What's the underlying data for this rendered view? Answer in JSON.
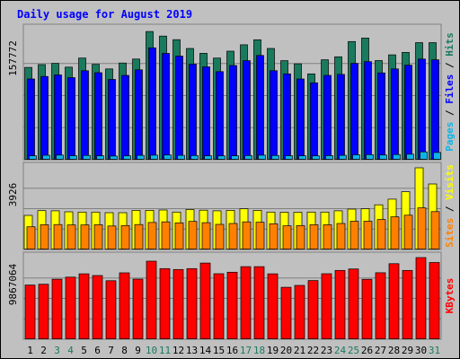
{
  "chart_data": {
    "type": "bar",
    "title": "Daily usage for August 2019",
    "categories": [
      "1",
      "2",
      "3",
      "4",
      "5",
      "6",
      "7",
      "8",
      "9",
      "10",
      "11",
      "12",
      "13",
      "14",
      "15",
      "16",
      "17",
      "18",
      "19",
      "20",
      "21",
      "22",
      "23",
      "24",
      "25",
      "26",
      "27",
      "28",
      "29",
      "30",
      "31"
    ],
    "weekend_days": [
      "3",
      "4",
      "10",
      "11",
      "17",
      "18",
      "24",
      "25",
      "31"
    ],
    "panels": [
      {
        "id": "hits",
        "ylabel": "157772",
        "ymax": 157772,
        "axis_labels": [
          "Pages",
          "Files",
          "Hits"
        ],
        "series": [
          {
            "name": "Hits",
            "color": "#1a7a5e",
            "values": [
              113500,
              117000,
              118500,
              113900,
              125000,
              117300,
              111600,
              118900,
              123800,
              157700,
              152000,
              147600,
              136800,
              130800,
              125000,
              133500,
              141300,
              147500,
              136800,
              121800,
              117900,
              105600,
              122900,
              126500,
              145300,
              149600,
              121900,
              129000,
              131900,
              144000,
              144000
            ]
          },
          {
            "name": "Files",
            "color": "#0000ff",
            "values": [
              99300,
              102400,
              104300,
              101000,
              109500,
              107000,
              98700,
              103700,
              110500,
              137600,
              130700,
              127400,
              117500,
              114200,
              108300,
              115900,
              121800,
              128200,
              109500,
              105600,
              99300,
              94600,
              103700,
              104900,
              118500,
              120600,
              106800,
              111600,
              116300,
              123800,
              122900
            ]
          },
          {
            "name": "Pages",
            "color": "#0fb4e6",
            "values": [
              4800,
              5500,
              5700,
              5000,
              5300,
              4900,
              4500,
              4900,
              5400,
              5600,
              5800,
              5400,
              5200,
              4900,
              4700,
              4900,
              5200,
              5600,
              5200,
              5000,
              4800,
              4700,
              5100,
              5400,
              6100,
              6300,
              5800,
              6400,
              6800,
              9700,
              8900
            ]
          }
        ]
      },
      {
        "id": "visits",
        "ylabel": "3926",
        "ymax": 3926,
        "axis_labels": [
          "Sites",
          "Visits"
        ],
        "series": [
          {
            "name": "Visits",
            "color": "#ffff00",
            "values": [
              1640,
              1870,
              1860,
              1810,
              1800,
              1800,
              1770,
              1770,
              1880,
              1880,
              1900,
              1800,
              1920,
              1890,
              1860,
              1880,
              1960,
              1880,
              1800,
              1790,
              1790,
              1800,
              1800,
              1860,
              1940,
              1960,
              2150,
              2420,
              2780,
              3926,
              3150
            ]
          },
          {
            "name": "Sites",
            "color": "#ff8000",
            "values": [
              1090,
              1190,
              1200,
              1180,
              1180,
              1190,
              1130,
              1150,
              1200,
              1300,
              1330,
              1280,
              1350,
              1290,
              1210,
              1250,
              1330,
              1310,
              1240,
              1140,
              1150,
              1190,
              1190,
              1250,
              1360,
              1360,
              1440,
              1570,
              1650,
              2000,
              1820
            ]
          }
        ]
      },
      {
        "id": "kbytes",
        "ylabel": "9867064",
        "ymax": 9867064,
        "axis_labels": [
          "KBytes"
        ],
        "series": [
          {
            "name": "KBytes",
            "color": "#ff0000",
            "values": [
              6550000,
              6650000,
              7250000,
              7500000,
              7900000,
              7700000,
              7070000,
              8020000,
              7260000,
              9430000,
              8530000,
              8420000,
              8530000,
              9210000,
              7920000,
              8100000,
              8770000,
              8770000,
              7900000,
              6280000,
              6510000,
              7090000,
              7910000,
              8320000,
              8490000,
              7240000,
              8040000,
              9130000,
              8320000,
              9867064,
              9270000
            ]
          }
        ]
      }
    ]
  }
}
